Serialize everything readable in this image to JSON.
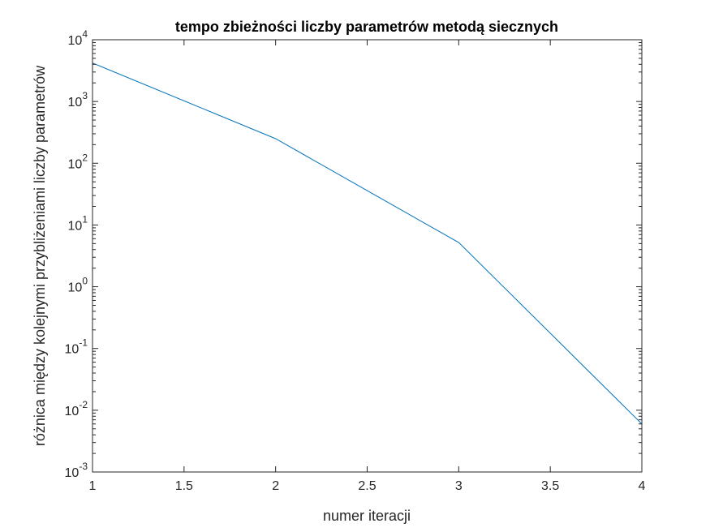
{
  "chart_data": {
    "type": "line",
    "title": "tempo zbieżności liczby parametrów metodą siecznych",
    "xlabel": "numer iteracji",
    "ylabel": "różnica między kolejnymi przybliżeniami liczby parametrów",
    "xlim": [
      1,
      4
    ],
    "ylim": [
      0.001,
      10000
    ],
    "yscale": "log",
    "grid": false,
    "x_ticks": [
      "1",
      "1.5",
      "2",
      "2.5",
      "3",
      "3.5",
      "4"
    ],
    "y_ticks": [
      {
        "base": "10",
        "exp": "-3"
      },
      {
        "base": "10",
        "exp": "-2"
      },
      {
        "base": "10",
        "exp": "-1"
      },
      {
        "base": "10",
        "exp": "0"
      },
      {
        "base": "10",
        "exp": "1"
      },
      {
        "base": "10",
        "exp": "2"
      },
      {
        "base": "10",
        "exp": "3"
      },
      {
        "base": "10",
        "exp": "4"
      }
    ],
    "series": [
      {
        "color": "#0072BD",
        "x": [
          1,
          2,
          3,
          4
        ],
        "y": [
          4200,
          250,
          5.2,
          0.006
        ]
      }
    ]
  }
}
